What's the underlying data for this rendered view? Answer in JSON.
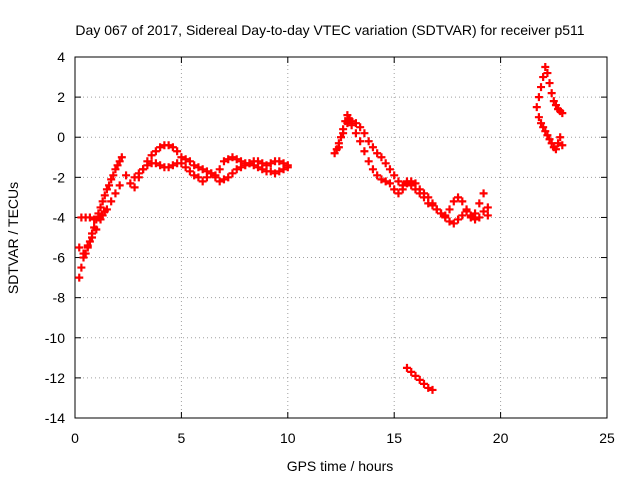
{
  "chart_data": {
    "type": "scatter",
    "title": "Day 067 of 2017, Sidereal Day-to-day VTEC variation (SDTVAR) for receiver p511",
    "xlabel": "GPS time / hours",
    "ylabel": "SDTVAR / TECUs",
    "xlim": [
      0,
      25
    ],
    "ylim": [
      -14,
      4
    ],
    "xticks": [
      "0",
      "5",
      "10",
      "15",
      "20",
      "25"
    ],
    "yticks": [
      "-14",
      "-12",
      "-10",
      "-8",
      "-6",
      "-4",
      "-2",
      "0",
      "2",
      "4"
    ],
    "grid": true,
    "marker": "plus",
    "series": [
      {
        "name": "SDTVAR",
        "color": "#ff0000",
        "x": [
          0.2,
          0.3,
          0.4,
          0.5,
          0.6,
          0.7,
          0.8,
          0.9,
          1.0,
          1.1,
          1.2,
          1.3,
          1.4,
          1.5,
          1.6,
          1.7,
          1.8,
          1.9,
          2.0,
          2.1,
          2.2,
          2.4,
          2.6,
          2.8,
          3.0,
          3.2,
          3.4,
          3.6,
          3.8,
          4.0,
          4.2,
          4.4,
          4.6,
          4.8,
          5.0,
          5.2,
          5.4,
          5.6,
          5.8,
          6.0,
          6.2,
          6.4,
          6.6,
          6.8,
          7.0,
          7.2,
          7.4,
          7.6,
          7.8,
          8.0,
          8.2,
          8.4,
          8.6,
          8.8,
          9.0,
          9.2,
          9.4,
          9.6,
          9.8,
          10.0,
          0.3,
          0.5,
          0.7,
          0.9,
          1.1,
          1.3,
          1.5,
          1.7,
          1.9,
          2.1,
          2.8,
          3.0,
          3.2,
          3.4,
          3.6,
          3.8,
          4.0,
          4.2,
          4.4,
          4.6,
          4.8,
          5.0,
          5.2,
          5.4,
          5.6,
          0.2,
          0.4,
          0.6,
          0.8,
          1.0,
          1.2,
          1.4,
          5.8,
          6.0,
          6.2,
          6.4,
          6.6,
          6.8,
          7.0,
          7.2,
          7.4,
          7.6,
          7.8,
          8.0,
          8.2,
          8.4,
          8.6,
          8.8,
          9.0,
          9.2,
          9.4,
          9.6,
          9.8,
          10.0,
          12.2,
          12.3,
          12.4,
          12.5,
          12.6,
          12.7,
          12.8,
          12.9,
          13.0,
          13.2,
          13.4,
          13.6,
          13.8,
          14.0,
          14.2,
          14.4,
          14.6,
          14.8,
          15.0,
          15.2,
          15.4,
          15.6,
          15.8,
          16.0,
          16.2,
          16.4,
          16.6,
          16.8,
          17.0,
          17.2,
          17.4,
          17.6,
          17.8,
          18.0,
          18.2,
          18.4,
          18.6,
          18.8,
          19.0,
          19.2,
          19.4,
          12.4,
          12.6,
          12.8,
          13.0,
          13.2,
          13.4,
          13.6,
          13.8,
          14.0,
          14.2,
          14.4,
          14.6,
          14.8,
          15.0,
          15.2,
          15.4,
          15.6,
          15.8,
          16.0,
          16.2,
          16.4,
          16.6,
          16.8,
          17.0,
          17.2,
          17.4,
          17.6,
          17.8,
          18.0,
          18.2,
          18.4,
          18.6,
          18.8,
          19.0,
          19.2,
          19.4,
          15.6,
          15.8,
          16.0,
          16.2,
          16.4,
          16.6,
          16.8,
          21.7,
          21.8,
          21.9,
          22.0,
          22.1,
          22.2,
          22.3,
          22.4,
          22.5,
          22.6,
          22.7,
          22.8,
          22.9,
          21.8,
          21.9,
          22.0,
          22.1,
          22.2,
          22.3,
          22.4,
          22.5,
          22.6,
          22.7,
          22.8,
          22.9
        ],
        "y": [
          -7.0,
          -6.5,
          -6.0,
          -5.8,
          -5.5,
          -5.2,
          -4.8,
          -4.5,
          -4.1,
          -3.8,
          -3.5,
          -3.2,
          -2.9,
          -2.6,
          -2.4,
          -2.1,
          -1.9,
          -1.6,
          -1.4,
          -1.2,
          -1.0,
          -1.9,
          -2.3,
          -2.5,
          -2.0,
          -1.6,
          -1.2,
          -0.9,
          -0.7,
          -0.5,
          -0.4,
          -0.4,
          -0.5,
          -0.7,
          -1.0,
          -1.1,
          -1.2,
          -1.4,
          -1.5,
          -1.6,
          -1.7,
          -1.8,
          -1.9,
          -1.6,
          -1.2,
          -1.1,
          -1.0,
          -1.1,
          -1.2,
          -1.3,
          -1.3,
          -1.2,
          -1.2,
          -1.3,
          -1.4,
          -1.3,
          -1.2,
          -1.2,
          -1.3,
          -1.4,
          -4.0,
          -4.0,
          -4.0,
          -4.1,
          -4.0,
          -3.9,
          -3.6,
          -3.2,
          -2.8,
          -2.4,
          -2.0,
          -1.8,
          -1.6,
          -1.4,
          -1.3,
          -1.3,
          -1.4,
          -1.5,
          -1.5,
          -1.4,
          -1.3,
          -1.3,
          -1.5,
          -1.7,
          -1.9,
          -5.5,
          -5.8,
          -5.4,
          -5.0,
          -4.6,
          -4.1,
          -3.7,
          -2.0,
          -2.2,
          -2.0,
          -1.8,
          -2.0,
          -2.2,
          -2.1,
          -2.0,
          -1.8,
          -1.6,
          -1.5,
          -1.4,
          -1.3,
          -1.4,
          -1.5,
          -1.6,
          -1.7,
          -1.7,
          -1.8,
          -1.7,
          -1.6,
          -1.5,
          -0.8,
          -0.6,
          -0.3,
          0.0,
          0.4,
          0.8,
          1.1,
          0.9,
          0.6,
          0.2,
          -0.2,
          -0.7,
          -1.2,
          -1.6,
          -1.9,
          -2.1,
          -2.2,
          -2.3,
          -2.6,
          -2.8,
          -2.6,
          -2.2,
          -2.2,
          -2.3,
          -2.6,
          -2.8,
          -3.0,
          -3.3,
          -3.6,
          -3.8,
          -3.9,
          -3.6,
          -3.2,
          -3.0,
          -3.2,
          -3.6,
          -4.0,
          -3.8,
          -3.3,
          -2.8,
          -3.5,
          -0.5,
          0.2,
          0.7,
          0.8,
          0.7,
          0.5,
          0.2,
          -0.2,
          -0.5,
          -0.8,
          -1.0,
          -1.3,
          -1.6,
          -1.9,
          -2.2,
          -2.4,
          -2.3,
          -2.4,
          -2.6,
          -2.8,
          -3.0,
          -3.3,
          -3.4,
          -3.6,
          -3.8,
          -4.0,
          -4.2,
          -4.3,
          -4.1,
          -3.9,
          -3.7,
          -3.9,
          -4.1,
          -4.0,
          -3.7,
          -3.9,
          -11.5,
          -11.7,
          -11.9,
          -12.1,
          -12.3,
          -12.5,
          -12.6,
          1.5,
          2.0,
          2.5,
          3.0,
          3.5,
          3.2,
          2.7,
          2.2,
          1.8,
          1.6,
          1.4,
          1.3,
          1.2,
          1.0,
          0.7,
          0.5,
          0.3,
          0.1,
          -0.1,
          -0.3,
          -0.5,
          -0.6,
          -0.3,
          0.0,
          -0.4
        ]
      }
    ]
  }
}
